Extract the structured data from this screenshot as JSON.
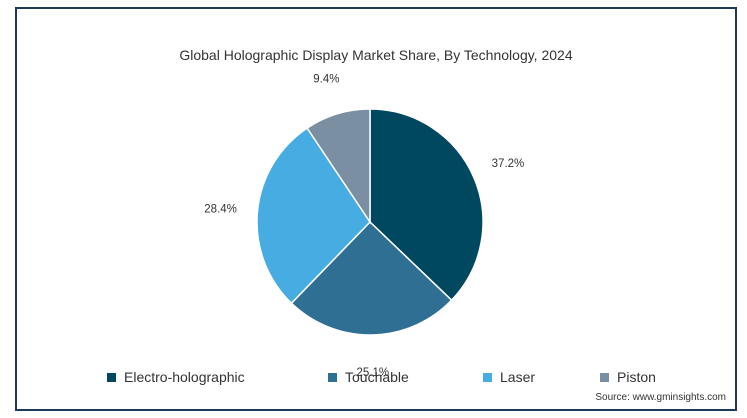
{
  "chart_data": {
    "type": "pie",
    "title": "Global Holographic Display Market Share, By Technology, 2024",
    "slices": [
      {
        "name": "Electro-holographic",
        "value": 37.2,
        "label": "37.2%",
        "color": "#004760"
      },
      {
        "name": "Touchable",
        "value": 25.1,
        "label": "25.1%",
        "color": "#2f6f93"
      },
      {
        "name": "Laser",
        "value": 28.4,
        "label": "28.4%",
        "color": "#46ace1"
      },
      {
        "name": "Piston",
        "value": 9.4,
        "label": "9.4%",
        "color": "#7b8fa3"
      }
    ],
    "legend_position": "bottom",
    "source": "Source: www.gminsights.com"
  }
}
